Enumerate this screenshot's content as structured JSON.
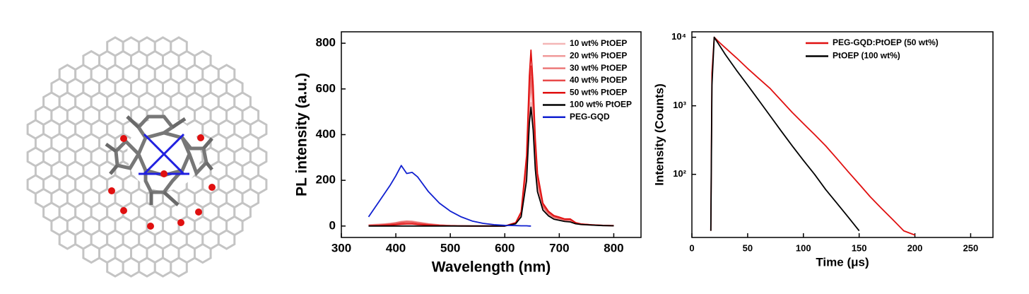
{
  "chart_data": [
    {
      "type": "line",
      "ylabel": "PL intensity (a.u.)",
      "xlabel": "Wavelength (nm)",
      "xlim": [
        300,
        850
      ],
      "xticks": [
        300,
        400,
        500,
        600,
        700,
        800
      ],
      "ylim": [
        -50,
        850
      ],
      "yticks": [
        0,
        200,
        400,
        600,
        800
      ],
      "log_y": false,
      "legend": "upper right",
      "x": [
        350,
        370,
        390,
        400,
        410,
        420,
        430,
        440,
        460,
        480,
        500,
        520,
        540,
        560,
        580,
        600,
        620,
        630,
        640,
        645,
        648,
        652,
        656,
        660,
        670,
        680,
        690,
        700,
        710,
        720,
        730,
        740,
        760,
        780,
        800
      ],
      "series": [
        {
          "name": "10 wt% PtOEP",
          "color": "#f4b6b6",
          "values": [
            5,
            8,
            10,
            12,
            15,
            18,
            18,
            14,
            8,
            4,
            2,
            1,
            0,
            0,
            0,
            0,
            11,
            43,
            216,
            459,
            540,
            432,
            270,
            162,
            70,
            46,
            32,
            27,
            22,
            22,
            11,
            6,
            4,
            2,
            1
          ]
        },
        {
          "name": "20 wt% PtOEP",
          "color": "#f09a9a",
          "values": [
            4,
            7,
            12,
            15,
            20,
            22,
            21,
            17,
            10,
            5,
            2,
            1,
            0,
            0,
            0,
            0,
            12,
            50,
            248,
            527,
            620,
            496,
            310,
            186,
            81,
            53,
            37,
            31,
            25,
            25,
            12,
            7,
            4,
            2,
            1
          ]
        },
        {
          "name": "30 wt% PtOEP",
          "color": "#ec7a7a",
          "values": [
            3,
            6,
            10,
            14,
            18,
            20,
            19,
            15,
            9,
            4,
            2,
            1,
            0,
            0,
            0,
            0,
            13,
            52,
            260,
            553,
            650,
            520,
            325,
            195,
            85,
            55,
            39,
            33,
            26,
            26,
            13,
            8,
            5,
            3,
            1
          ]
        },
        {
          "name": "40 wt% PtOEP",
          "color": "#e84a4a",
          "values": [
            2,
            4,
            8,
            10,
            14,
            16,
            15,
            12,
            7,
            3,
            1,
            1,
            0,
            0,
            0,
            0,
            14,
            56,
            280,
            595,
            700,
            560,
            350,
            210,
            91,
            60,
            42,
            35,
            28,
            28,
            14,
            8,
            5,
            3,
            1
          ]
        },
        {
          "name": "50 wt% PtOEP",
          "color": "#e01010",
          "values": [
            1,
            2,
            4,
            6,
            8,
            9,
            9,
            7,
            4,
            2,
            1,
            0,
            0,
            0,
            0,
            0,
            15,
            62,
            308,
            655,
            770,
            616,
            385,
            231,
            100,
            65,
            46,
            39,
            31,
            31,
            15,
            9,
            5,
            3,
            2
          ]
        },
        {
          "name": "100 wt% PtOEP",
          "color": "#000000",
          "values": [
            0,
            0,
            0,
            0,
            0,
            0,
            0,
            0,
            0,
            0,
            0,
            0,
            0,
            0,
            0,
            0,
            10,
            40,
            200,
            450,
            520,
            420,
            250,
            150,
            70,
            45,
            30,
            25,
            20,
            18,
            10,
            7,
            4,
            2,
            1
          ]
        },
        {
          "name": "PEG-GQD",
          "color": "#1020d0",
          "values": [
            40,
            110,
            180,
            220,
            265,
            230,
            235,
            215,
            150,
            100,
            65,
            40,
            22,
            12,
            6,
            3,
            2,
            1,
            1,
            0,
            0,
            null,
            null,
            null,
            null,
            null,
            null,
            null,
            null,
            null,
            null,
            null,
            null,
            null,
            null
          ]
        }
      ]
    },
    {
      "type": "line",
      "ylabel": "Intensity (Counts)",
      "xlabel": "Time (μs)",
      "xlim": [
        0,
        270
      ],
      "xticks": [
        0,
        50,
        100,
        150,
        200,
        250
      ],
      "ylim": [
        12,
        12000
      ],
      "yticks": [
        {
          "value": 100,
          "label": "10²"
        },
        {
          "value": 1000,
          "label": "10³"
        },
        {
          "value": 10000,
          "label": "10⁴"
        }
      ],
      "log_y": true,
      "legend": "upper right",
      "x": [
        14,
        16,
        17,
        18,
        20,
        25,
        30,
        40,
        50,
        60,
        70,
        80,
        90,
        100,
        110,
        120,
        130,
        140,
        150,
        160,
        170,
        180,
        190,
        200
      ],
      "series": [
        {
          "name": "PEG-GQD:PtOEP (50 wt%)",
          "color": "#e01010",
          "values": [
            null,
            null,
            15,
            3000,
            10000,
            8300,
            7000,
            5000,
            3500,
            2500,
            1800,
            1200,
            800,
            550,
            380,
            260,
            170,
            110,
            72,
            47,
            32,
            22,
            15,
            13
          ]
        },
        {
          "name": "PtOEP (100 wt%)",
          "color": "#000000",
          "values": [
            null,
            null,
            15,
            2000,
            10000,
            7500,
            5600,
            3300,
            2000,
            1200,
            720,
            430,
            260,
            160,
            100,
            60,
            38,
            24,
            15,
            null,
            null,
            null,
            null,
            null
          ]
        }
      ]
    }
  ]
}
